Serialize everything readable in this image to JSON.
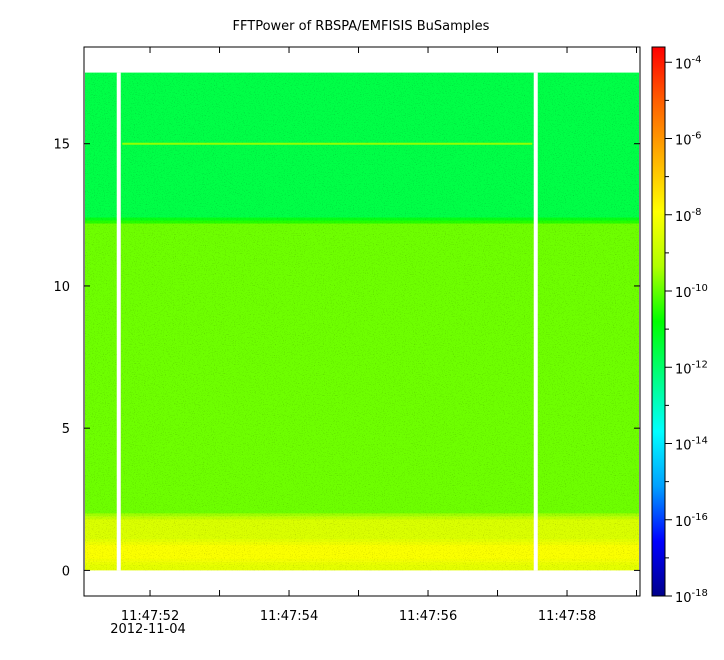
{
  "chart_data": {
    "type": "heatmap",
    "title": "FFTPower of RBSPA/EMFISIS  BuSamples",
    "xlabel": "",
    "ylabel": "",
    "x_ticks": [
      {
        "label": "11:47:52",
        "sub": "2012-11-04",
        "t": 52
      },
      {
        "label": "11:47:54",
        "sub": "",
        "t": 54
      },
      {
        "label": "11:47:56",
        "sub": "",
        "t": 56
      },
      {
        "label": "11:47:58",
        "sub": "",
        "t": 58
      }
    ],
    "xlim": [
      51.05,
      59.05
    ],
    "y_ticks": [
      0,
      5,
      10,
      15
    ],
    "ylim": [
      -0.9,
      18.4
    ],
    "data_extent_y": [
      0.0,
      17.5
    ],
    "gaps_t": [
      51.55,
      57.55
    ],
    "narrowband_line_y": 15.0,
    "narrowband_line_t_range": [
      51.6,
      57.5
    ],
    "bands": [
      {
        "y_range": [
          0.0,
          0.3
        ],
        "log10_power": -8.4
      },
      {
        "y_range": [
          0.3,
          1.0
        ],
        "log10_power": -8.0
      },
      {
        "y_range": [
          1.0,
          1.9
        ],
        "log10_power": -8.6
      },
      {
        "y_range": [
          1.9,
          12.3
        ],
        "log10_power": -9.9
      },
      {
        "y_range": [
          12.3,
          17.5
        ],
        "log10_power": -11.6
      }
    ],
    "colorbar": {
      "scale": "log",
      "range": [
        -18,
        -3.6
      ],
      "tick_exponents": [
        -4,
        -6,
        -8,
        -10,
        -12,
        -14,
        -16,
        -18
      ],
      "colors": [
        "#00008b",
        "#0000ff",
        "#00a0ff",
        "#00ffff",
        "#00ff80",
        "#00ff00",
        "#b0ff00",
        "#ffff00",
        "#ffb000",
        "#ff6000",
        "#ff0000"
      ]
    }
  }
}
